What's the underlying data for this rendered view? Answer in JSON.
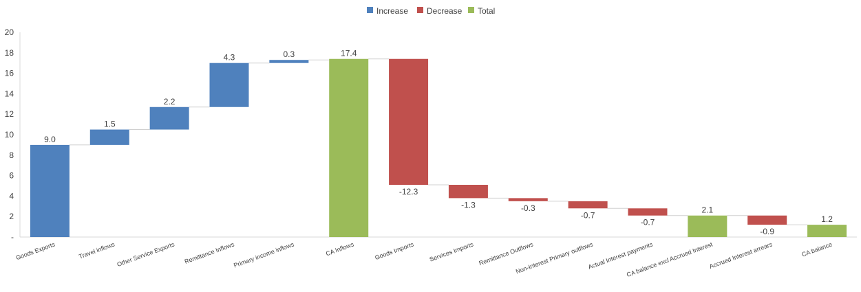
{
  "chart_data": {
    "type": "waterfall",
    "legend": [
      {
        "name": "Increase",
        "color": "#4F81BD"
      },
      {
        "name": "Decrease",
        "color": "#C0504D"
      },
      {
        "name": "Total",
        "color": "#9BBB59"
      }
    ],
    "legend_position": "top",
    "ylim": [
      0,
      20
    ],
    "yticks": [
      "-",
      "2",
      "4",
      "6",
      "8",
      "10",
      "12",
      "14",
      "16",
      "18",
      "20"
    ],
    "ytick_values": [
      0,
      2,
      4,
      6,
      8,
      10,
      12,
      14,
      16,
      18,
      20
    ],
    "grid": false,
    "connectors": true,
    "categories": [
      "Goods Exports",
      "Travel inflows",
      "Other Service Exports",
      "Remittance Inflows",
      "Primary income inflows",
      "CA Inflows",
      "Goods Imports",
      "Services Imports",
      "Remittance Outflows",
      "Non-Interest Primary outflows",
      "Actual Interest payments",
      "CA balance excl Accrued Interest",
      "Accrued Interest arrears",
      "CA balance"
    ],
    "kinds": [
      "increase",
      "increase",
      "increase",
      "increase",
      "increase",
      "total",
      "decrease",
      "decrease",
      "decrease",
      "decrease",
      "decrease",
      "total",
      "decrease",
      "total"
    ],
    "values": [
      9.0,
      1.5,
      2.2,
      4.3,
      0.3,
      17.4,
      -12.3,
      -1.3,
      -0.3,
      -0.7,
      -0.7,
      2.1,
      -0.9,
      1.2
    ],
    "labels": [
      "9.0",
      "1.5",
      "2.2",
      "4.3",
      "0.3",
      "17.4",
      "-12.3",
      "-1.3",
      "-0.3",
      "-0.7",
      "-0.7",
      "2.1",
      "-0.9",
      "1.2"
    ]
  }
}
